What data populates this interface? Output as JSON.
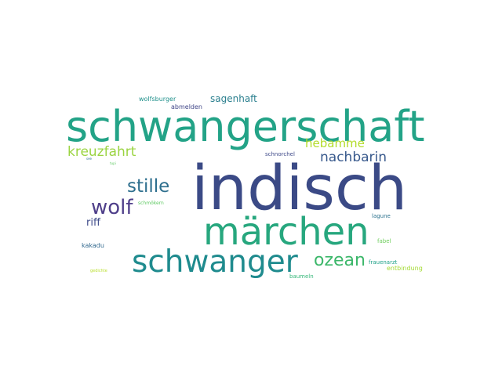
{
  "words": [
    {
      "text": "indisch",
      "color": "#3b4a86"
    },
    {
      "text": "schwangerschaft",
      "color": "#23a387"
    },
    {
      "text": "märchen",
      "color": "#27a77e"
    },
    {
      "text": "schwanger",
      "color": "#1f8b8e"
    },
    {
      "text": "ozean",
      "color": "#3cb76a"
    },
    {
      "text": "stille",
      "color": "#2e6f8e"
    },
    {
      "text": "wolf",
      "color": "#4f3f8a"
    },
    {
      "text": "kreuzfahrt",
      "color": "#9bd442"
    },
    {
      "text": "hebamme",
      "color": "#b3dc2b"
    },
    {
      "text": "nachbarin",
      "color": "#38598c"
    },
    {
      "text": "sagenhaft",
      "color": "#2a7f8e"
    },
    {
      "text": "riff",
      "color": "#3f4c8a"
    },
    {
      "text": "wolfsburger",
      "color": "#21918c"
    },
    {
      "text": "abmelden",
      "color": "#404688"
    },
    {
      "text": "schnorchel",
      "color": "#3e4989"
    },
    {
      "text": "schmökern",
      "color": "#5ec962"
    },
    {
      "text": "lagune",
      "color": "#2c728e"
    },
    {
      "text": "fabel",
      "color": "#6ccd5a"
    },
    {
      "text": "kakadu",
      "color": "#31688e"
    },
    {
      "text": "frauenarzt",
      "color": "#1fa188"
    },
    {
      "text": "entbindung",
      "color": "#a5db36"
    },
    {
      "text": "baumeln",
      "color": "#35b779"
    },
    {
      "text": "gedichte",
      "color": "#b8de29"
    },
    {
      "text": "see",
      "color": "#2d708e"
    },
    {
      "text": "tupi",
      "color": "#5ec962"
    }
  ]
}
